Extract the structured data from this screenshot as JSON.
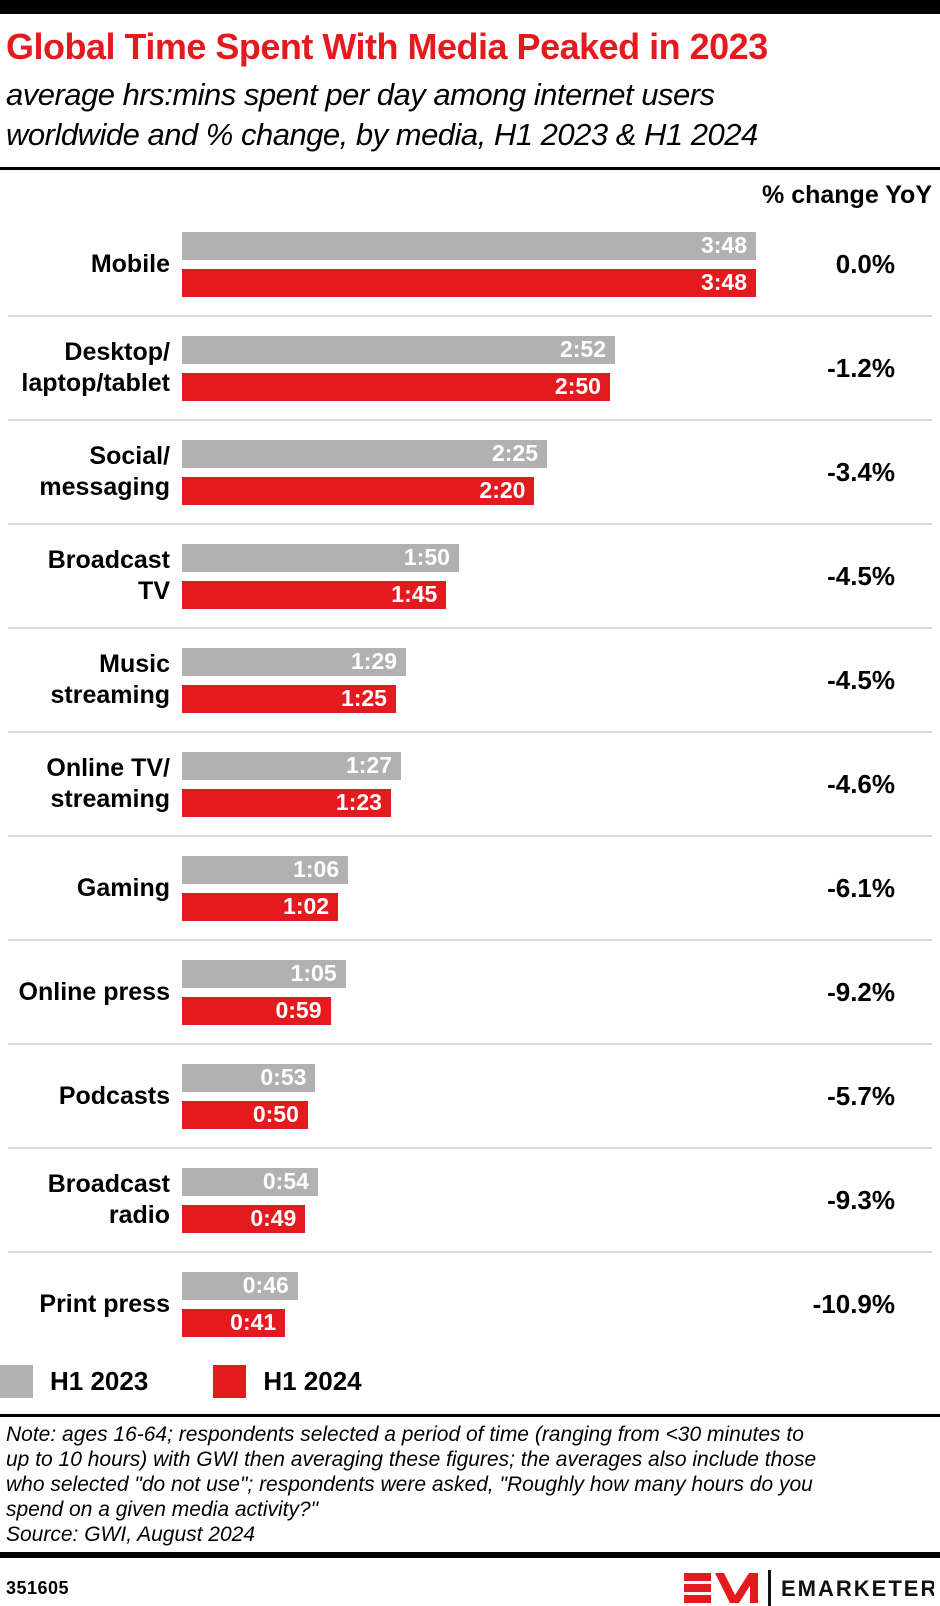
{
  "page": {
    "title": "Global Time Spent With Media Peaked in 2023",
    "subtitle": "average hrs:mins spent per day among internet users\nworldwide and % change, by media, H1 2023 & H1 2024",
    "note": "Note: ages 16-64; respondents selected a period of time (ranging from <30 minutes to\nup to 10 hours) with GWI then averaging these figures; the averages also include those\nwho selected \"do not use\"; respondents were asked, \"Roughly how many hours do you\nspend on a given media activity?\"",
    "source": "Source: GWI, August 2024",
    "footer_id": "351605",
    "brand": "EMARKETER"
  },
  "colors": {
    "accent": "#e41a1f",
    "bar_gray": "#b1b1b1",
    "separator": "#d9d9d9",
    "text": "#000000",
    "brand_dark": "#111111"
  },
  "legend": {
    "items": [
      {
        "label": "H1 2023",
        "color": "#b1b1b1"
      },
      {
        "label": "H1 2024",
        "color": "#e41a1f"
      }
    ]
  },
  "chart_data": {
    "type": "bar",
    "orientation": "horizontal",
    "value_format": "hrs:mins per day",
    "pct_header": "% change YoY",
    "max_minutes": 228,
    "grid": false,
    "legend_position": "bottom",
    "categories": [
      "Mobile",
      "Desktop/\nlaptop/tablet",
      "Social/\nmessaging",
      "Broadcast\nTV",
      "Music\nstreaming",
      "Online TV/\nstreaming",
      "Gaming",
      "Online press",
      "Podcasts",
      "Broadcast\nradio",
      "Print press"
    ],
    "series": [
      {
        "name": "H1 2023",
        "color": "#b1b1b1",
        "values": [
          "3:48",
          "2:52",
          "2:25",
          "1:50",
          "1:29",
          "1:27",
          "1:06",
          "1:05",
          "0:53",
          "0:54",
          "0:46"
        ],
        "minutes": [
          228,
          172,
          145,
          110,
          89,
          87,
          66,
          65,
          53,
          54,
          46
        ]
      },
      {
        "name": "H1 2024",
        "color": "#e41a1f",
        "values": [
          "3:48",
          "2:50",
          "2:20",
          "1:45",
          "1:25",
          "1:23",
          "1:02",
          "0:59",
          "0:50",
          "0:49",
          "0:41"
        ],
        "minutes": [
          228,
          170,
          140,
          105,
          85,
          83,
          62,
          59,
          50,
          49,
          41
        ]
      }
    ],
    "pct_change": [
      "0.0%",
      "-1.2%",
      "-3.4%",
      "-4.5%",
      "-4.5%",
      "-4.6%",
      "-6.1%",
      "-9.2%",
      "-5.7%",
      "-9.3%",
      "-10.9%"
    ]
  }
}
